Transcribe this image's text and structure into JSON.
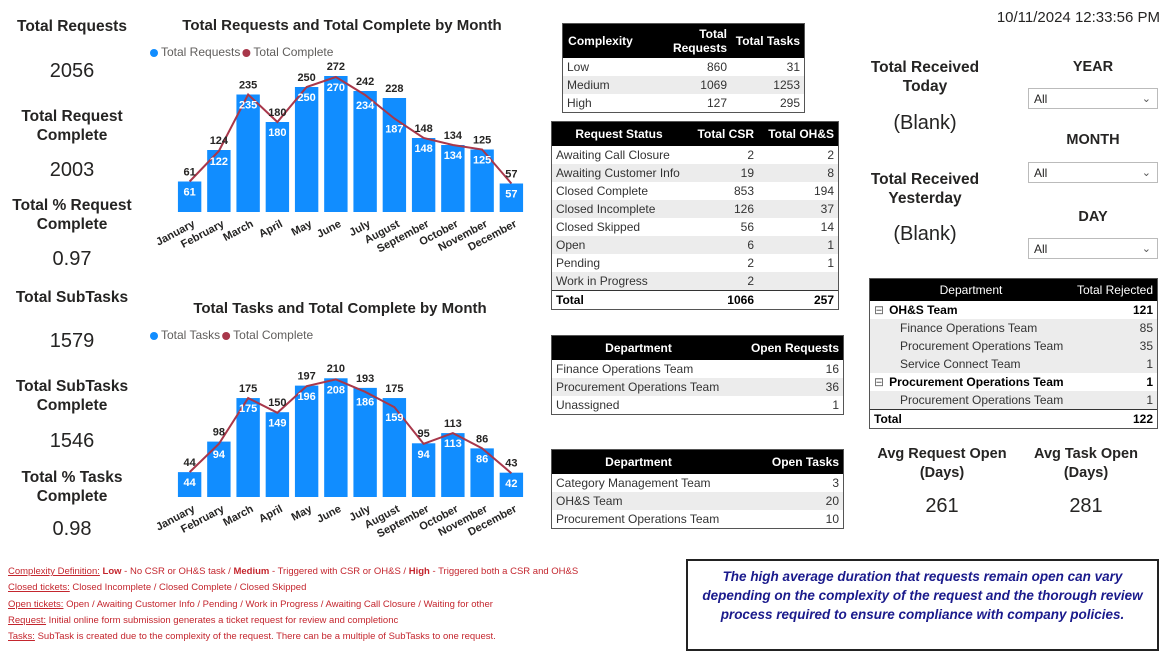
{
  "timestamp": "10/11/2024 12:33:56 PM",
  "cards": [
    {
      "label": "Total Requests",
      "value": 2056
    },
    {
      "label": "Total Request Complete",
      "value": 2003
    },
    {
      "label": "Total % Request Complete",
      "value": 0.97
    },
    {
      "label": "Total SubTasks",
      "value": 1579
    },
    {
      "label": "Total SubTasks Complete",
      "value": 1546
    },
    {
      "label": "Total % Tasks Complete",
      "value": 0.98
    }
  ],
  "chart_data": [
    {
      "type": "combo",
      "title": "Total Requests and Total Complete by Month",
      "categories": [
        "January",
        "February",
        "March",
        "April",
        "May",
        "June",
        "July",
        "August",
        "September",
        "October",
        "November",
        "December"
      ],
      "series": [
        {
          "name": "Total Requests",
          "type": "bar",
          "color": "#118dff",
          "values": [
            61,
            124,
            235,
            180,
            250,
            272,
            242,
            228,
            148,
            134,
            125,
            57
          ]
        },
        {
          "name": "Total Complete",
          "type": "line",
          "color": "#a8374a",
          "values": [
            61,
            122,
            235,
            180,
            250,
            270,
            234,
            187,
            148,
            134,
            125,
            57
          ]
        }
      ],
      "ylim": [
        0,
        300
      ]
    },
    {
      "type": "combo",
      "title": "Total Tasks and Total Complete by Month",
      "categories": [
        "January",
        "February",
        "March",
        "April",
        "May",
        "June",
        "July",
        "August",
        "September",
        "October",
        "November",
        "December"
      ],
      "series": [
        {
          "name": "Total Tasks",
          "type": "bar",
          "color": "#118dff",
          "values": [
            44,
            98,
            175,
            150,
            197,
            210,
            193,
            175,
            95,
            113,
            86,
            43
          ]
        },
        {
          "name": "Total Complete",
          "type": "line",
          "color": "#a8374a",
          "values": [
            44,
            94,
            175,
            149,
            196,
            208,
            186,
            159,
            94,
            113,
            86,
            42
          ]
        }
      ],
      "ylim": [
        0,
        260
      ]
    }
  ],
  "complexity_table": {
    "headers": [
      "Complexity",
      "Total Requests",
      "Total Tasks"
    ],
    "rows": [
      [
        "Low",
        860,
        31
      ],
      [
        "Medium",
        1069,
        1253
      ],
      [
        "High",
        127,
        295
      ]
    ]
  },
  "status_table": {
    "headers": [
      "Request Status",
      "Total CSR",
      "Total OH&S"
    ],
    "rows": [
      [
        "Awaiting Call Closure",
        2,
        2
      ],
      [
        "Awaiting Customer Info",
        19,
        8
      ],
      [
        "Closed Complete",
        853,
        194
      ],
      [
        "Closed Incomplete",
        126,
        37
      ],
      [
        "Closed Skipped",
        56,
        14
      ],
      [
        "Open",
        6,
        1
      ],
      [
        "Pending",
        2,
        1
      ],
      [
        "Work in Progress",
        2,
        null
      ]
    ],
    "total": [
      "Total",
      1066,
      257
    ]
  },
  "open_requests_table": {
    "headers": [
      "Department",
      "Open Requests"
    ],
    "rows": [
      [
        "Finance Operations Team",
        16
      ],
      [
        "Procurement Operations Team",
        36
      ],
      [
        "Unassigned",
        1
      ]
    ]
  },
  "open_tasks_table": {
    "headers": [
      "Department",
      "Open Tasks"
    ],
    "rows": [
      [
        "Category Management Team",
        3
      ],
      [
        "OH&S Team",
        20
      ],
      [
        "Procurement Operations Team",
        10
      ]
    ]
  },
  "received_cards": [
    {
      "label": "Total Received Today",
      "value": "(Blank)"
    },
    {
      "label": "Total Received Yesterday",
      "value": "(Blank)"
    }
  ],
  "slicers": [
    {
      "label": "YEAR",
      "value": "All"
    },
    {
      "label": "MONTH",
      "value": "All"
    },
    {
      "label": "DAY",
      "value": "All"
    }
  ],
  "rejected_table": {
    "headers": [
      "Department",
      "Total Rejected"
    ],
    "groups": [
      {
        "name": "OH&S Team",
        "value": 121,
        "children": [
          {
            "name": "Finance Operations Team",
            "value": 85
          },
          {
            "name": "Procurement Operations Team",
            "value": 35
          },
          {
            "name": "Service Connect Team",
            "value": 1
          }
        ]
      },
      {
        "name": "Procurement Operations Team",
        "value": 1,
        "children": [
          {
            "name": "Procurement Operations Team",
            "value": 1
          }
        ]
      }
    ],
    "total": {
      "label": "Total",
      "value": 122
    }
  },
  "avg_cards": [
    {
      "label": "Avg Request Open (Days)",
      "value": 261
    },
    {
      "label": "Avg Task Open (Days)",
      "value": 281
    }
  ],
  "notes": [
    {
      "label": "Complexity Definition:",
      "parts": [
        {
          "text": "Low",
          "bold": true
        },
        {
          "text": "- No CSR or OH&S task /",
          "bold": false
        },
        {
          "text": "Medium",
          "bold": true
        },
        {
          "text": "- Triggered with CSR or OH&S /",
          "bold": false
        },
        {
          "text": "High",
          "bold": true
        },
        {
          "text": "- Triggered both a CSR and OH&S",
          "bold": false
        }
      ]
    },
    {
      "label": "Closed tickets:",
      "parts": [
        {
          "text": "Closed Incomplete / Closed Complete / Closed Skipped",
          "bold": false
        }
      ]
    },
    {
      "label": "Open tickets:",
      "parts": [
        {
          "text": "Open / Awaiting Customer Info / Pending / Work in Progress / Awaiting Call Closure / Waiting for other",
          "bold": false
        }
      ]
    },
    {
      "label": "Request:",
      "parts": [
        {
          "text": "Initial online form submission generates a ticket request for review and completionc",
          "bold": false
        }
      ]
    },
    {
      "label": "Tasks:",
      "parts": [
        {
          "text": "SubTask is created due to the complexity of the request.  There can be a multiple of SubTasks to one request.",
          "bold": false
        }
      ]
    }
  ],
  "callout": "The high average duration that requests remain open can vary depending on the complexity of the request and the thorough review process required to ensure compliance with company policies."
}
